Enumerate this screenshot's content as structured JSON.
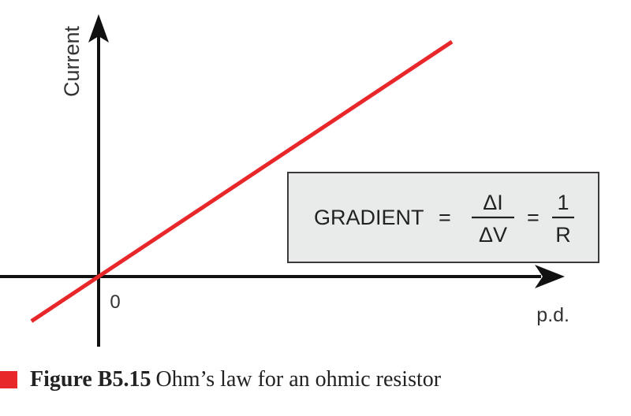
{
  "chart_data": {
    "type": "line",
    "title": "",
    "xlabel": "p.d.",
    "ylabel": "Current",
    "origin_label": "0",
    "series": [
      {
        "color": "#e8272a",
        "x": [
          -0.19,
          1.0
        ],
        "y": [
          -0.19,
          1.0
        ]
      }
    ],
    "grid": false,
    "annotation": {
      "prefix": "GRADIENT",
      "equals": "=",
      "fraction1": {
        "numerator": "ΔI",
        "denominator": "ΔV"
      },
      "fraction2": {
        "numerator": "1",
        "denominator": "R"
      }
    }
  },
  "caption": {
    "label": "Figure B5.15",
    "text": "Ohm’s law for an ohmic resistor"
  },
  "colors": {
    "accent": "#e8272a",
    "axis": "#111111",
    "box_fill": "#e9ebeb"
  }
}
